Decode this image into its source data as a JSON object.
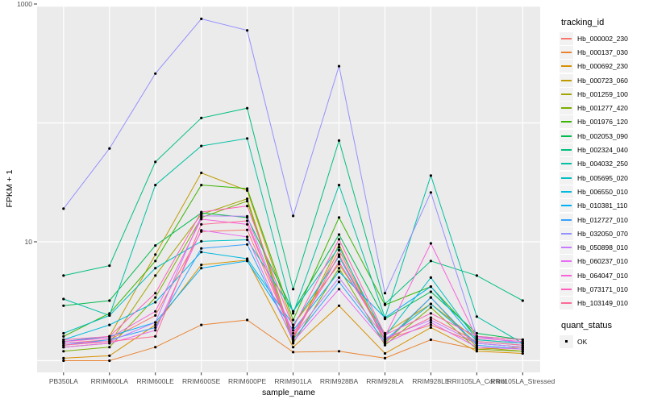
{
  "chart_data": {
    "type": "line",
    "title": "",
    "xlabel": "sample_name",
    "ylabel": "FPKM + 1",
    "y_scale": "log10",
    "ylim": [
      0.8,
      1000
    ],
    "grid": "on",
    "panel_bg": "#EBEBEB",
    "grid_color": "#FFFFFF",
    "point_color": "#000000",
    "y_ticks": [
      {
        "label": "1000",
        "value": 1000
      },
      {
        "label": "10",
        "value": 10
      }
    ],
    "y_gridlines": [
      1,
      10,
      100,
      1000
    ],
    "categories": [
      "PB350LA",
      "RRIM600LA",
      "RRIM600LE",
      "RRIM600SE",
      "RRIM600PE",
      "RRIM901LA",
      "RRIM928BA",
      "RRIM928LA",
      "RRIM928LE",
      "RRII105LA_Control",
      "RRII105LA_Stressed"
    ],
    "legend_position": "right",
    "legend_tracking_title": "tracking_id",
    "legend_quant_title": "quant_status",
    "quant_items": [
      {
        "label": "OK"
      }
    ],
    "series": [
      {
        "name": "Hb_000002_230",
        "color": "#F8766D",
        "values": [
          1.4,
          1.5,
          2.4,
          12.2,
          12.6,
          1.6,
          8.5,
          1.5,
          2.0,
          1.4,
          1.3
        ]
      },
      {
        "name": "Hb_000137_030",
        "color": "#EA8331",
        "values": [
          1.0,
          1.0,
          1.3,
          2.0,
          2.2,
          1.18,
          1.2,
          1.05,
          1.5,
          1.25,
          1.3
        ]
      },
      {
        "name": "Hb_000692_230",
        "color": "#D89000",
        "values": [
          1.05,
          1.1,
          2.0,
          6.4,
          7.0,
          1.3,
          2.9,
          1.15,
          1.9,
          1.2,
          1.15
        ]
      },
      {
        "name": "Hb_000723_060",
        "color": "#C09B00",
        "values": [
          1.45,
          1.6,
          7.8,
          38,
          27,
          2.0,
          6.5,
          1.7,
          3.0,
          1.5,
          1.4
        ]
      },
      {
        "name": "Hb_001259_100",
        "color": "#A3A500",
        "values": [
          1.3,
          1.4,
          5.2,
          17,
          23,
          1.5,
          9.5,
          1.4,
          3.4,
          1.3,
          1.2
        ]
      },
      {
        "name": "Hb_001277_420",
        "color": "#7CAE00",
        "values": [
          1.2,
          1.3,
          3.4,
          16,
          22,
          1.4,
          6.0,
          1.35,
          2.8,
          1.25,
          1.2
        ]
      },
      {
        "name": "Hb_001976_120",
        "color": "#39B600",
        "values": [
          1.6,
          2.5,
          6.9,
          30,
          28,
          2.2,
          16,
          2.95,
          4.2,
          1.6,
          1.5
        ]
      },
      {
        "name": "Hb_002053_090",
        "color": "#00BB4E",
        "values": [
          2.9,
          3.2,
          9.3,
          17.5,
          16,
          2.6,
          11.5,
          2.25,
          3.8,
          1.7,
          1.5
        ]
      },
      {
        "name": "Hb_002324_040",
        "color": "#00BF7D",
        "values": [
          5.2,
          6.3,
          47,
          110,
          133,
          4.0,
          71,
          3.0,
          6.9,
          5.2,
          3.2
        ]
      },
      {
        "name": "Hb_004032_250",
        "color": "#00C1A3",
        "values": [
          3.3,
          2.4,
          30,
          64,
          74,
          2.5,
          30,
          2.3,
          36,
          2.35,
          1.4
        ]
      },
      {
        "name": "Hb_005695_020",
        "color": "#00BFC4",
        "values": [
          1.7,
          2.4,
          6.0,
          10.1,
          10.4,
          2.6,
          9.0,
          1.6,
          5.0,
          1.5,
          1.4
        ]
      },
      {
        "name": "Hb_006550_010",
        "color": "#00BAE0",
        "values": [
          1.5,
          2.0,
          3.1,
          8.2,
          7.2,
          2.0,
          7.5,
          1.5,
          3.0,
          1.4,
          1.3
        ]
      },
      {
        "name": "Hb_010381_110",
        "color": "#00B0F6",
        "values": [
          1.45,
          1.6,
          2.1,
          6.0,
          6.9,
          1.8,
          5.6,
          2.3,
          4.2,
          1.45,
          1.35
        ]
      },
      {
        "name": "Hb_012727_010",
        "color": "#35A2FF",
        "values": [
          1.35,
          1.5,
          1.9,
          8.8,
          9.5,
          1.5,
          4.6,
          1.45,
          3.4,
          1.35,
          1.25
        ]
      },
      {
        "name": "Hb_032050_070",
        "color": "#9590FF",
        "values": [
          19,
          61,
          260,
          750,
          600,
          16.5,
          300,
          3.7,
          26,
          1.6,
          1.4
        ]
      },
      {
        "name": "Hb_050898_010",
        "color": "#C77CFF",
        "values": [
          1.4,
          1.45,
          2.1,
          16.5,
          16.4,
          1.6,
          5.0,
          1.55,
          2.2,
          1.4,
          1.3
        ]
      },
      {
        "name": "Hb_060237_010",
        "color": "#E76BF3",
        "values": [
          1.3,
          1.4,
          1.8,
          12.5,
          11,
          1.45,
          4.0,
          1.4,
          2.1,
          1.3,
          1.25
        ]
      },
      {
        "name": "Hb_064047_010",
        "color": "#FA62DB",
        "values": [
          1.45,
          1.55,
          2.6,
          15.5,
          14,
          1.7,
          6.8,
          1.6,
          9.7,
          1.55,
          1.45
        ]
      },
      {
        "name": "Hb_073171_010",
        "color": "#FF62BC",
        "values": [
          1.5,
          1.6,
          3.7,
          17.8,
          20,
          1.9,
          10.5,
          1.65,
          2.5,
          1.6,
          1.5
        ]
      },
      {
        "name": "Hb_103149_010",
        "color": "#FF6A98",
        "values": [
          1.35,
          1.45,
          1.6,
          14,
          15,
          1.55,
          7.8,
          1.5,
          2.3,
          1.45,
          1.35
        ]
      }
    ]
  }
}
